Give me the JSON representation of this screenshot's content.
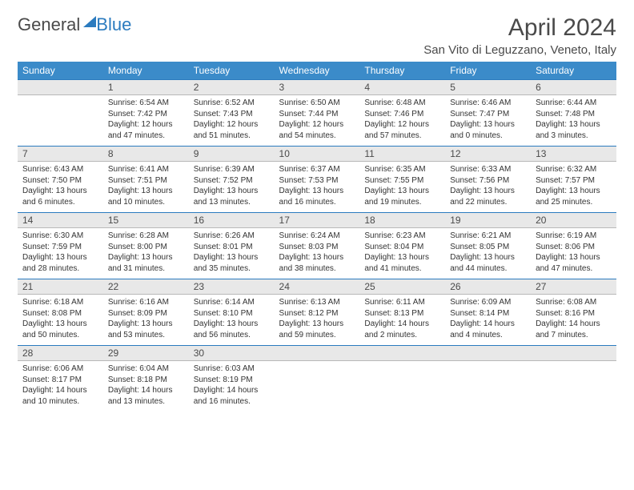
{
  "logo": {
    "text1": "General",
    "text2": "Blue"
  },
  "title": "April 2024",
  "location": "San Vito di Leguzzano, Veneto, Italy",
  "colors": {
    "header_bg": "#3b8bc9",
    "header_text": "#ffffff",
    "daynum_bg": "#e8e8e8",
    "daynum_border_top": "#2b7bbf",
    "logo_blue": "#2b7bbf",
    "body_text": "#333333"
  },
  "typography": {
    "title_size_pt": 22,
    "location_size_pt": 11,
    "dayhead_size_pt": 9,
    "daynum_size_pt": 9,
    "cell_size_pt": 7.5
  },
  "day_names": [
    "Sunday",
    "Monday",
    "Tuesday",
    "Wednesday",
    "Thursday",
    "Friday",
    "Saturday"
  ],
  "weeks": [
    {
      "nums": [
        "",
        "1",
        "2",
        "3",
        "4",
        "5",
        "6"
      ],
      "cells": [
        null,
        {
          "sr": "Sunrise: 6:54 AM",
          "ss": "Sunset: 7:42 PM",
          "d1": "Daylight: 12 hours",
          "d2": "and 47 minutes."
        },
        {
          "sr": "Sunrise: 6:52 AM",
          "ss": "Sunset: 7:43 PM",
          "d1": "Daylight: 12 hours",
          "d2": "and 51 minutes."
        },
        {
          "sr": "Sunrise: 6:50 AM",
          "ss": "Sunset: 7:44 PM",
          "d1": "Daylight: 12 hours",
          "d2": "and 54 minutes."
        },
        {
          "sr": "Sunrise: 6:48 AM",
          "ss": "Sunset: 7:46 PM",
          "d1": "Daylight: 12 hours",
          "d2": "and 57 minutes."
        },
        {
          "sr": "Sunrise: 6:46 AM",
          "ss": "Sunset: 7:47 PM",
          "d1": "Daylight: 13 hours",
          "d2": "and 0 minutes."
        },
        {
          "sr": "Sunrise: 6:44 AM",
          "ss": "Sunset: 7:48 PM",
          "d1": "Daylight: 13 hours",
          "d2": "and 3 minutes."
        }
      ]
    },
    {
      "nums": [
        "7",
        "8",
        "9",
        "10",
        "11",
        "12",
        "13"
      ],
      "cells": [
        {
          "sr": "Sunrise: 6:43 AM",
          "ss": "Sunset: 7:50 PM",
          "d1": "Daylight: 13 hours",
          "d2": "and 6 minutes."
        },
        {
          "sr": "Sunrise: 6:41 AM",
          "ss": "Sunset: 7:51 PM",
          "d1": "Daylight: 13 hours",
          "d2": "and 10 minutes."
        },
        {
          "sr": "Sunrise: 6:39 AM",
          "ss": "Sunset: 7:52 PM",
          "d1": "Daylight: 13 hours",
          "d2": "and 13 minutes."
        },
        {
          "sr": "Sunrise: 6:37 AM",
          "ss": "Sunset: 7:53 PM",
          "d1": "Daylight: 13 hours",
          "d2": "and 16 minutes."
        },
        {
          "sr": "Sunrise: 6:35 AM",
          "ss": "Sunset: 7:55 PM",
          "d1": "Daylight: 13 hours",
          "d2": "and 19 minutes."
        },
        {
          "sr": "Sunrise: 6:33 AM",
          "ss": "Sunset: 7:56 PM",
          "d1": "Daylight: 13 hours",
          "d2": "and 22 minutes."
        },
        {
          "sr": "Sunrise: 6:32 AM",
          "ss": "Sunset: 7:57 PM",
          "d1": "Daylight: 13 hours",
          "d2": "and 25 minutes."
        }
      ]
    },
    {
      "nums": [
        "14",
        "15",
        "16",
        "17",
        "18",
        "19",
        "20"
      ],
      "cells": [
        {
          "sr": "Sunrise: 6:30 AM",
          "ss": "Sunset: 7:59 PM",
          "d1": "Daylight: 13 hours",
          "d2": "and 28 minutes."
        },
        {
          "sr": "Sunrise: 6:28 AM",
          "ss": "Sunset: 8:00 PM",
          "d1": "Daylight: 13 hours",
          "d2": "and 31 minutes."
        },
        {
          "sr": "Sunrise: 6:26 AM",
          "ss": "Sunset: 8:01 PM",
          "d1": "Daylight: 13 hours",
          "d2": "and 35 minutes."
        },
        {
          "sr": "Sunrise: 6:24 AM",
          "ss": "Sunset: 8:03 PM",
          "d1": "Daylight: 13 hours",
          "d2": "and 38 minutes."
        },
        {
          "sr": "Sunrise: 6:23 AM",
          "ss": "Sunset: 8:04 PM",
          "d1": "Daylight: 13 hours",
          "d2": "and 41 minutes."
        },
        {
          "sr": "Sunrise: 6:21 AM",
          "ss": "Sunset: 8:05 PM",
          "d1": "Daylight: 13 hours",
          "d2": "and 44 minutes."
        },
        {
          "sr": "Sunrise: 6:19 AM",
          "ss": "Sunset: 8:06 PM",
          "d1": "Daylight: 13 hours",
          "d2": "and 47 minutes."
        }
      ]
    },
    {
      "nums": [
        "21",
        "22",
        "23",
        "24",
        "25",
        "26",
        "27"
      ],
      "cells": [
        {
          "sr": "Sunrise: 6:18 AM",
          "ss": "Sunset: 8:08 PM",
          "d1": "Daylight: 13 hours",
          "d2": "and 50 minutes."
        },
        {
          "sr": "Sunrise: 6:16 AM",
          "ss": "Sunset: 8:09 PM",
          "d1": "Daylight: 13 hours",
          "d2": "and 53 minutes."
        },
        {
          "sr": "Sunrise: 6:14 AM",
          "ss": "Sunset: 8:10 PM",
          "d1": "Daylight: 13 hours",
          "d2": "and 56 minutes."
        },
        {
          "sr": "Sunrise: 6:13 AM",
          "ss": "Sunset: 8:12 PM",
          "d1": "Daylight: 13 hours",
          "d2": "and 59 minutes."
        },
        {
          "sr": "Sunrise: 6:11 AM",
          "ss": "Sunset: 8:13 PM",
          "d1": "Daylight: 14 hours",
          "d2": "and 2 minutes."
        },
        {
          "sr": "Sunrise: 6:09 AM",
          "ss": "Sunset: 8:14 PM",
          "d1": "Daylight: 14 hours",
          "d2": "and 4 minutes."
        },
        {
          "sr": "Sunrise: 6:08 AM",
          "ss": "Sunset: 8:16 PM",
          "d1": "Daylight: 14 hours",
          "d2": "and 7 minutes."
        }
      ]
    },
    {
      "nums": [
        "28",
        "29",
        "30",
        "",
        "",
        "",
        ""
      ],
      "cells": [
        {
          "sr": "Sunrise: 6:06 AM",
          "ss": "Sunset: 8:17 PM",
          "d1": "Daylight: 14 hours",
          "d2": "and 10 minutes."
        },
        {
          "sr": "Sunrise: 6:04 AM",
          "ss": "Sunset: 8:18 PM",
          "d1": "Daylight: 14 hours",
          "d2": "and 13 minutes."
        },
        {
          "sr": "Sunrise: 6:03 AM",
          "ss": "Sunset: 8:19 PM",
          "d1": "Daylight: 14 hours",
          "d2": "and 16 minutes."
        },
        null,
        null,
        null,
        null
      ]
    }
  ]
}
